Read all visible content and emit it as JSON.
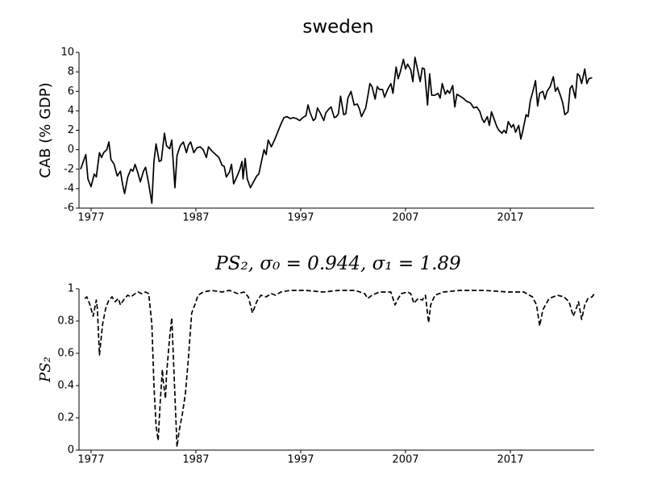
{
  "chart_data": [
    {
      "type": "line",
      "title": "sweden",
      "ylabel": "CAB (% GDP)",
      "color": "#000000",
      "line_style": "solid",
      "xlim": [
        1975.85,
        2025
      ],
      "xticks": [
        1977,
        1987,
        1997,
        2007,
        2017
      ],
      "ylim": [
        -6,
        10
      ],
      "yticks": [
        -6,
        -4,
        -2,
        0,
        2,
        4,
        6,
        8,
        10
      ],
      "x": [
        1976.0,
        1976.5,
        1976.7,
        1977.0,
        1977.3,
        1977.5,
        1977.8,
        1978.0,
        1978.2,
        1978.5,
        1978.7,
        1978.9,
        1979.2,
        1979.5,
        1979.8,
        1980.0,
        1980.2,
        1980.5,
        1980.8,
        1981.0,
        1981.2,
        1981.5,
        1981.7,
        1982.0,
        1982.2,
        1982.5,
        1982.8,
        1983.0,
        1983.2,
        1983.5,
        1983.7,
        1984.0,
        1984.2,
        1984.5,
        1984.7,
        1985.0,
        1985.2,
        1985.5,
        1985.8,
        1986.1,
        1986.3,
        1986.5,
        1986.8,
        1987.1,
        1987.4,
        1987.7,
        1988.0,
        1988.2,
        1988.5,
        1988.8,
        1989.2,
        1989.5,
        1989.7,
        1989.9,
        1990.2,
        1990.4,
        1990.6,
        1990.9,
        1991.2,
        1991.4,
        1991.5,
        1991.7,
        1991.9,
        1992.2,
        1992.5,
        1992.8,
        1993.0,
        1993.2,
        1993.5,
        1993.7,
        1993.9,
        1994.2,
        1994.5,
        1994.8,
        1995.1,
        1995.4,
        1995.7,
        1996.0,
        1996.3,
        1996.6,
        1996.9,
        1997.2,
        1997.5,
        1997.7,
        1997.9,
        1998.2,
        1998.4,
        1998.6,
        1998.9,
        1999.2,
        1999.4,
        1999.7,
        1999.9,
        2000.2,
        2000.4,
        2000.6,
        2000.8,
        2001.1,
        2001.3,
        2001.5,
        2001.8,
        2002.1,
        2002.4,
        2002.6,
        2002.8,
        2003.2,
        2003.4,
        2003.6,
        2003.8,
        2004.1,
        2004.3,
        2004.5,
        2004.8,
        2005.0,
        2005.3,
        2005.6,
        2005.8,
        2006.1,
        2006.3,
        2006.5,
        2006.8,
        2007.0,
        2007.2,
        2007.5,
        2007.7,
        2007.9,
        2008.2,
        2008.4,
        2008.6,
        2008.8,
        2009.1,
        2009.3,
        2009.5,
        2009.8,
        2010.1,
        2010.3,
        2010.5,
        2010.8,
        2011.0,
        2011.2,
        2011.5,
        2011.7,
        2011.9,
        2012.2,
        2012.5,
        2012.8,
        2013.2,
        2013.5,
        2013.8,
        2014.1,
        2014.3,
        2014.5,
        2014.8,
        2015.0,
        2015.2,
        2015.5,
        2015.7,
        2015.9,
        2016.2,
        2016.4,
        2016.6,
        2016.8,
        2017.1,
        2017.3,
        2017.5,
        2017.8,
        2018.0,
        2018.2,
        2018.5,
        2018.7,
        2018.9,
        2019.2,
        2019.4,
        2019.6,
        2019.8,
        2020.1,
        2020.3,
        2020.5,
        2020.8,
        2021.1,
        2021.3,
        2021.5,
        2021.8,
        2022.0,
        2022.2,
        2022.5,
        2022.7,
        2022.9,
        2023.2,
        2023.4,
        2023.6,
        2023.8,
        2024.1,
        2024.3,
        2024.5,
        2024.8
      ],
      "values": [
        -2.0,
        -0.5,
        -3.0,
        -3.8,
        -2.5,
        -2.8,
        -0.3,
        -0.8,
        -0.3,
        0.0,
        0.8,
        -1.0,
        -1.5,
        -2.7,
        -2.2,
        -3.5,
        -4.5,
        -2.8,
        -2.0,
        -2.2,
        -1.5,
        -2.5,
        -3.3,
        -2.2,
        -1.8,
        -3.5,
        -5.5,
        -1.2,
        0.6,
        -1.2,
        -1.1,
        1.7,
        0.4,
        0.1,
        1.0,
        -3.9,
        -0.6,
        0.4,
        0.8,
        -0.3,
        0.5,
        0.8,
        -0.3,
        0.2,
        0.3,
        0.0,
        -0.8,
        0.3,
        -0.1,
        -0.4,
        -0.8,
        -1.6,
        -1.7,
        -2.8,
        -2.3,
        -1.5,
        -3.5,
        -2.8,
        -2.0,
        -1.2,
        -3.0,
        -0.9,
        -3.0,
        -3.9,
        -3.3,
        -2.7,
        -2.5,
        -1.5,
        0.0,
        -0.5,
        1.0,
        0.3,
        1.0,
        1.8,
        2.6,
        3.3,
        3.4,
        3.2,
        3.3,
        3.2,
        3.0,
        3.3,
        3.5,
        4.6,
        3.8,
        3.0,
        3.2,
        4.3,
        3.7,
        3.0,
        3.8,
        4.2,
        4.4,
        3.3,
        3.4,
        3.7,
        5.5,
        3.6,
        3.7,
        5.3,
        6.0,
        4.6,
        4.7,
        4.2,
        3.4,
        4.3,
        5.5,
        6.8,
        6.5,
        5.2,
        6.5,
        6.2,
        6.2,
        5.4,
        6.2,
        6.8,
        5.8,
        8.5,
        7.3,
        8.0,
        9.3,
        8.3,
        8.8,
        8.2,
        7.0,
        9.5,
        8.0,
        7.0,
        8.4,
        8.3,
        4.6,
        7.8,
        5.6,
        5.6,
        5.8,
        5.3,
        6.8,
        5.7,
        6.1,
        5.8,
        6.6,
        4.4,
        5.7,
        5.5,
        5.3,
        5.0,
        4.8,
        4.3,
        4.4,
        3.9,
        3.2,
        2.8,
        3.4,
        2.5,
        3.9,
        3.0,
        2.4,
        2.0,
        1.7,
        2.0,
        1.7,
        2.9,
        2.3,
        2.6,
        1.8,
        2.5,
        1.1,
        2.0,
        3.6,
        3.4,
        5.0,
        6.2,
        7.1,
        4.5,
        5.8,
        6.0,
        5.2,
        6.0,
        6.5,
        7.5,
        6.0,
        6.4,
        5.5,
        4.8,
        3.6,
        3.9,
        6.3,
        6.6,
        5.3,
        7.8,
        7.6,
        6.8,
        8.3,
        6.8,
        7.3,
        7.4
      ]
    },
    {
      "type": "line",
      "title": "PS₂, σ₀ = 0.944, σ₁ = 1.89",
      "ylabel": "PS₂",
      "color": "#000000",
      "line_style": "dashed",
      "xlim": [
        1975.85,
        2025
      ],
      "xticks": [
        1977,
        1987,
        1997,
        2007,
        2017
      ],
      "ylim": [
        0,
        1
      ],
      "yticks": [
        0,
        0.2,
        0.4,
        0.6,
        0.8,
        1
      ],
      "x": [
        1976.4,
        1976.6,
        1976.9,
        1977.2,
        1977.5,
        1977.6,
        1977.8,
        1978.1,
        1978.4,
        1978.7,
        1979.0,
        1979.3,
        1979.6,
        1979.8,
        1980.2,
        1980.5,
        1980.8,
        1981.2,
        1981.5,
        1981.8,
        1982.2,
        1982.5,
        1982.8,
        1983.0,
        1983.2,
        1983.4,
        1983.6,
        1983.8,
        1983.9,
        1984.1,
        1984.2,
        1984.5,
        1984.7,
        1984.9,
        1985.2,
        1985.4,
        1985.7,
        1986.0,
        1986.3,
        1986.6,
        1986.9,
        1987.2,
        1987.7,
        1988.5,
        1989.5,
        1990.2,
        1991.0,
        1991.6,
        1992.0,
        1992.4,
        1992.8,
        1993.2,
        1993.7,
        1994.2,
        1994.6,
        1995.1,
        1996.0,
        1997.5,
        1999.1,
        2000.6,
        2002.2,
        2003.1,
        2003.4,
        2003.8,
        2004.5,
        2005.6,
        2006.0,
        2006.3,
        2006.6,
        2007.2,
        2007.5,
        2007.8,
        2008.2,
        2008.6,
        2008.9,
        2009.2,
        2009.4,
        2009.8,
        2010.6,
        2012.2,
        2014.5,
        2016.8,
        2018.3,
        2019.1,
        2019.5,
        2019.8,
        2020.1,
        2020.7,
        2021.5,
        2022.1,
        2022.6,
        2023.0,
        2023.3,
        2023.5,
        2023.8,
        2024.1,
        2024.4,
        2024.8,
        2025.0
      ],
      "values": [
        0.94,
        0.95,
        0.9,
        0.83,
        0.93,
        0.88,
        0.59,
        0.78,
        0.88,
        0.93,
        0.95,
        0.92,
        0.94,
        0.9,
        0.94,
        0.96,
        0.95,
        0.97,
        0.98,
        0.97,
        0.98,
        0.97,
        0.78,
        0.4,
        0.15,
        0.06,
        0.3,
        0.5,
        0.42,
        0.32,
        0.47,
        0.7,
        0.82,
        0.5,
        0.02,
        0.12,
        0.22,
        0.35,
        0.58,
        0.85,
        0.9,
        0.96,
        0.98,
        0.99,
        0.98,
        0.99,
        0.97,
        0.98,
        0.95,
        0.85,
        0.92,
        0.96,
        0.95,
        0.97,
        0.96,
        0.98,
        0.99,
        0.99,
        0.98,
        0.99,
        0.99,
        0.97,
        0.94,
        0.96,
        0.98,
        0.98,
        0.9,
        0.94,
        0.97,
        0.98,
        0.97,
        0.91,
        0.94,
        0.93,
        0.96,
        0.79,
        0.9,
        0.96,
        0.98,
        0.99,
        0.99,
        0.98,
        0.98,
        0.95,
        0.9,
        0.77,
        0.87,
        0.94,
        0.96,
        0.95,
        0.92,
        0.83,
        0.88,
        0.92,
        0.81,
        0.9,
        0.94,
        0.95,
        0.97
      ]
    }
  ]
}
